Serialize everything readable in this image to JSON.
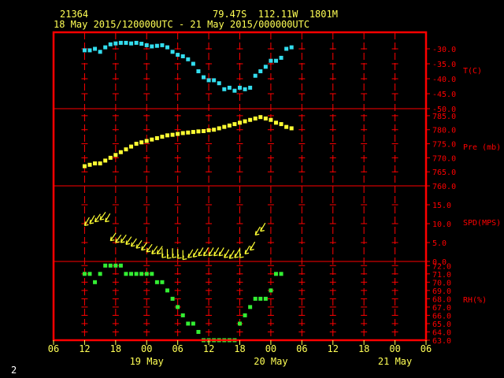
{
  "header": {
    "station_id": "21364",
    "location": "79.47S  112.11W  1801M",
    "period": "18 May 2015/120000UTC - 21 May 2015/000000UTC"
  },
  "footer": {
    "page_number": "2"
  },
  "colors": {
    "background": "#000000",
    "frame": "#ff0000",
    "grid": "#ff0000",
    "axis_text": "#ffff55",
    "temperature": "#33ddee",
    "pressure": "#ffff33",
    "wind": "#ffff33",
    "humidity": "#33ee33"
  },
  "chart_data": {
    "type": "scatter",
    "x_axis": {
      "unit": "hours from 18 May 06 UTC",
      "range": [
        0,
        72
      ],
      "tick_labels": [
        "06",
        "12",
        "18",
        "00",
        "06",
        "12",
        "18",
        "00",
        "06",
        "12",
        "18",
        "00",
        "06"
      ],
      "tick_values": [
        0,
        6,
        12,
        18,
        24,
        30,
        36,
        42,
        48,
        54,
        60,
        66,
        72
      ],
      "date_labels": [
        {
          "x": 18,
          "label": "19 May"
        },
        {
          "x": 42,
          "label": "20 May"
        },
        {
          "x": 66,
          "label": "21 May"
        }
      ]
    },
    "panels": [
      {
        "id": "temperature",
        "label": "T(C)",
        "range": [
          -50,
          -25
        ],
        "tick_values": [
          -30,
          -35,
          -40,
          -45,
          -50
        ],
        "tick_labels": [
          "-30.0",
          "-35.0",
          "-40.0",
          "-45.0",
          "-50.0"
        ],
        "points": [
          [
            6,
            -30.5
          ],
          [
            7,
            -30.5
          ],
          [
            8,
            -30.0
          ],
          [
            9,
            -31.0
          ],
          [
            10,
            -29.5
          ],
          [
            11,
            -28.5
          ],
          [
            12,
            -28.2
          ],
          [
            13,
            -28.0
          ],
          [
            14,
            -28.0
          ],
          [
            15,
            -28.2
          ],
          [
            16,
            -28.0
          ],
          [
            17,
            -28.3
          ],
          [
            18,
            -28.8
          ],
          [
            19,
            -29.2
          ],
          [
            20,
            -29.0
          ],
          [
            21,
            -28.8
          ],
          [
            22,
            -29.5
          ],
          [
            23,
            -31.0
          ],
          [
            24,
            -32.0
          ],
          [
            25,
            -32.5
          ],
          [
            26,
            -33.5
          ],
          [
            27,
            -35.0
          ],
          [
            28,
            -37.5
          ],
          [
            29,
            -39.5
          ],
          [
            30,
            -40.5
          ],
          [
            31,
            -40.5
          ],
          [
            32,
            -41.5
          ],
          [
            33,
            -43.5
          ],
          [
            34,
            -43.0
          ],
          [
            35,
            -44.0
          ],
          [
            36,
            -43.0
          ],
          [
            37,
            -43.5
          ],
          [
            38,
            -43.0
          ],
          [
            39,
            -39.0
          ],
          [
            40,
            -37.5
          ],
          [
            41,
            -36.0
          ],
          [
            42,
            -34.0
          ],
          [
            43,
            -34.0
          ],
          [
            44,
            -33.0
          ],
          [
            45,
            -30.0
          ],
          [
            46,
            -29.5
          ]
        ]
      },
      {
        "id": "pressure",
        "label": "Pre (mb)",
        "range": [
          760,
          787.5
        ],
        "tick_values": [
          785,
          780,
          775,
          770,
          765,
          760
        ],
        "tick_labels": [
          "785.0",
          "780.0",
          "775.0",
          "770.0",
          "765.0",
          "760.0"
        ],
        "points": [
          [
            6,
            767.0
          ],
          [
            7,
            767.5
          ],
          [
            8,
            768.0
          ],
          [
            9,
            768.0
          ],
          [
            10,
            769.0
          ],
          [
            11,
            770.0
          ],
          [
            12,
            771.0
          ],
          [
            13,
            772.0
          ],
          [
            14,
            773.0
          ],
          [
            15,
            774.0
          ],
          [
            16,
            775.0
          ],
          [
            17,
            775.5
          ],
          [
            18,
            776.0
          ],
          [
            19,
            776.5
          ],
          [
            20,
            777.0
          ],
          [
            21,
            777.5
          ],
          [
            22,
            778.0
          ],
          [
            23,
            778.2
          ],
          [
            24,
            778.5
          ],
          [
            25,
            778.8
          ],
          [
            26,
            779.0
          ],
          [
            27,
            779.2
          ],
          [
            28,
            779.4
          ],
          [
            29,
            779.5
          ],
          [
            30,
            779.8
          ],
          [
            31,
            780.0
          ],
          [
            32,
            780.5
          ],
          [
            33,
            781.0
          ],
          [
            34,
            781.5
          ],
          [
            35,
            782.0
          ],
          [
            36,
            782.5
          ],
          [
            37,
            783.0
          ],
          [
            38,
            783.5
          ],
          [
            39,
            784.0
          ],
          [
            40,
            784.5
          ],
          [
            41,
            784.0
          ],
          [
            42,
            783.5
          ],
          [
            43,
            782.5
          ],
          [
            44,
            782.0
          ],
          [
            45,
            781.0
          ],
          [
            46,
            780.5
          ]
        ]
      },
      {
        "id": "wind",
        "label": "SPD(MPS)",
        "range": [
          0,
          20
        ],
        "tick_values": [
          15,
          10,
          5,
          0
        ],
        "tick_labels": [
          "15.0",
          "10.0",
          "5.0",
          "0.0"
        ],
        "points": [
          [
            6,
            9.5,
            60
          ],
          [
            7,
            10.0,
            60
          ],
          [
            8,
            10.5,
            55
          ],
          [
            9,
            11.0,
            55
          ],
          [
            10,
            10.5,
            60
          ],
          [
            11,
            5.5,
            55
          ],
          [
            12,
            5.0,
            55
          ],
          [
            13,
            5.0,
            55
          ],
          [
            14,
            4.5,
            55
          ],
          [
            15,
            4.0,
            55
          ],
          [
            16,
            3.5,
            55
          ],
          [
            17,
            3.0,
            55
          ],
          [
            18,
            2.5,
            55
          ],
          [
            19,
            2.0,
            55
          ],
          [
            20,
            2.0,
            55
          ],
          [
            21,
            1.0,
            90
          ],
          [
            22,
            0.8,
            90
          ],
          [
            23,
            1.0,
            90
          ],
          [
            24,
            0.8,
            90
          ],
          [
            25,
            0.5,
            90
          ],
          [
            26,
            1.0,
            60
          ],
          [
            27,
            1.2,
            60
          ],
          [
            28,
            1.5,
            60
          ],
          [
            29,
            1.5,
            60
          ],
          [
            30,
            1.5,
            60
          ],
          [
            31,
            1.5,
            60
          ],
          [
            32,
            1.5,
            60
          ],
          [
            33,
            1.0,
            60
          ],
          [
            34,
            0.8,
            60
          ],
          [
            35,
            1.0,
            60
          ],
          [
            36,
            1.0,
            90
          ],
          [
            37,
            2.0,
            60
          ],
          [
            38,
            3.0,
            60
          ],
          [
            39,
            7.0,
            60
          ],
          [
            40,
            8.0,
            60
          ]
        ]
      },
      {
        "id": "humidity",
        "label": "RH(%)",
        "range": [
          63,
          72.5
        ],
        "tick_values": [
          72,
          71,
          70,
          69,
          68,
          67,
          66,
          65,
          64,
          63
        ],
        "tick_labels": [
          "72.0",
          "71.0",
          "70.0",
          "69.0",
          "68.0",
          "67.0",
          "66.0",
          "65.0",
          "64.0",
          "63.0"
        ],
        "points": [
          [
            6,
            71
          ],
          [
            7,
            71
          ],
          [
            8,
            70
          ],
          [
            9,
            71
          ],
          [
            10,
            72
          ],
          [
            11,
            72
          ],
          [
            12,
            72
          ],
          [
            13,
            72
          ],
          [
            14,
            71
          ],
          [
            15,
            71
          ],
          [
            16,
            71
          ],
          [
            17,
            71
          ],
          [
            18,
            71
          ],
          [
            19,
            71
          ],
          [
            20,
            70
          ],
          [
            21,
            70
          ],
          [
            22,
            69
          ],
          [
            23,
            68
          ],
          [
            24,
            67
          ],
          [
            25,
            66
          ],
          [
            26,
            65
          ],
          [
            27,
            65
          ],
          [
            28,
            64
          ],
          [
            29,
            63
          ],
          [
            30,
            63
          ],
          [
            31,
            63
          ],
          [
            32,
            63
          ],
          [
            33,
            63
          ],
          [
            34,
            63
          ],
          [
            35,
            63
          ],
          [
            36,
            65
          ],
          [
            37,
            66
          ],
          [
            38,
            67
          ],
          [
            39,
            68
          ],
          [
            40,
            68
          ],
          [
            41,
            68
          ],
          [
            42,
            69
          ],
          [
            43,
            71
          ],
          [
            44,
            71
          ]
        ]
      }
    ]
  }
}
